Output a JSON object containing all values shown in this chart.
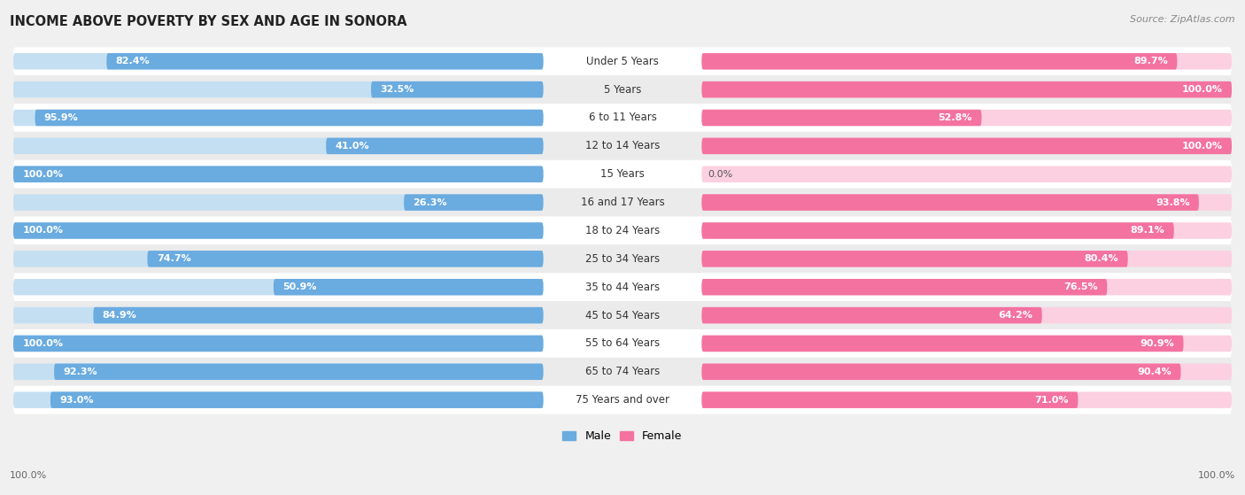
{
  "title": "INCOME ABOVE POVERTY BY SEX AND AGE IN SONORA",
  "source": "Source: ZipAtlas.com",
  "categories": [
    "Under 5 Years",
    "5 Years",
    "6 to 11 Years",
    "12 to 14 Years",
    "15 Years",
    "16 and 17 Years",
    "18 to 24 Years",
    "25 to 34 Years",
    "35 to 44 Years",
    "45 to 54 Years",
    "55 to 64 Years",
    "65 to 74 Years",
    "75 Years and over"
  ],
  "male_values": [
    82.4,
    32.5,
    95.9,
    41.0,
    100.0,
    26.3,
    100.0,
    74.7,
    50.9,
    84.9,
    100.0,
    92.3,
    93.0
  ],
  "female_values": [
    89.7,
    100.0,
    52.8,
    100.0,
    0.0,
    93.8,
    89.1,
    80.4,
    76.5,
    64.2,
    90.9,
    90.4,
    71.0
  ],
  "male_color": "#6aabe0",
  "male_bg_color": "#c5dff2",
  "female_color": "#f472a0",
  "female_bg_color": "#fcd0e0",
  "male_label": "Male",
  "female_label": "Female",
  "bg_color": "#f0f0f0",
  "row_color_even": "#ffffff",
  "row_color_odd": "#ebebeb",
  "max_val": 100.0,
  "title_fontsize": 10.5,
  "cat_fontsize": 8.5,
  "value_fontsize": 8.0,
  "source_fontsize": 8.0,
  "legend_fontsize": 9.0
}
